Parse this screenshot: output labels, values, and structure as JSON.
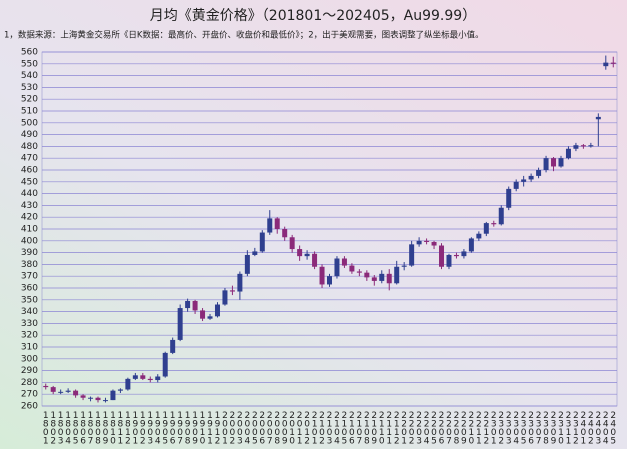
{
  "chart_data": {
    "type": "candlestick",
    "title": "月均《黄金价格》（201801～202405，Au99.99）",
    "subtitle": "1，数据来源：上海黄金交易所《日K数据：最高价、开盘价、收盘价和最低价》；2，出于美观需要，图表调整了纵坐标最小值。",
    "categories": [
      "1801",
      "1802",
      "1803",
      "1804",
      "1805",
      "1806",
      "1807",
      "1808",
      "1809",
      "1810",
      "1811",
      "1812",
      "1901",
      "1902",
      "1903",
      "1904",
      "1905",
      "1906",
      "1907",
      "1908",
      "1909",
      "1910",
      "1911",
      "1912",
      "2001",
      "2002",
      "2003",
      "2004",
      "2005",
      "2006",
      "2007",
      "2008",
      "2009",
      "2010",
      "2011",
      "2012",
      "2101",
      "2102",
      "2103",
      "2104",
      "2105",
      "2106",
      "2107",
      "2108",
      "2109",
      "2110",
      "2111",
      "2112",
      "2201",
      "2202",
      "2203",
      "2204",
      "2205",
      "2206",
      "2207",
      "2208",
      "2209",
      "2210",
      "2211",
      "2212",
      "2301",
      "2302",
      "2303",
      "2304",
      "2305",
      "2306",
      "2307",
      "2308",
      "2309",
      "2310",
      "2311",
      "2312",
      "2401",
      "2402",
      "2403",
      "2404",
      "2405"
    ],
    "open": [
      277,
      276,
      272,
      272,
      273,
      269,
      267,
      267,
      265,
      265,
      273,
      274,
      283,
      286,
      283,
      282,
      285,
      305,
      316,
      343,
      349,
      341,
      334,
      336,
      346,
      358,
      357,
      372,
      388,
      391,
      407,
      419,
      410,
      403,
      393,
      387,
      389,
      378,
      363,
      370,
      385,
      379,
      374,
      373,
      369,
      366,
      372,
      364,
      378,
      379,
      397,
      400,
      399,
      396,
      378,
      388,
      387,
      391,
      402,
      406,
      415,
      414,
      428,
      444,
      450,
      452,
      455,
      460,
      470,
      463,
      470,
      478,
      481,
      480,
      503,
      548,
      551
    ],
    "high": [
      279,
      277,
      274,
      275,
      274,
      270,
      268,
      268,
      267,
      274,
      275,
      284,
      288,
      288,
      285,
      287,
      306,
      318,
      346,
      351,
      350,
      343,
      338,
      348,
      360,
      362,
      374,
      392,
      394,
      409,
      426,
      420,
      412,
      405,
      396,
      392,
      391,
      380,
      372,
      387,
      387,
      381,
      376,
      375,
      371,
      375,
      376,
      383,
      382,
      400,
      403,
      402,
      400,
      398,
      389,
      390,
      393,
      403,
      408,
      416,
      417,
      430,
      446,
      452,
      455,
      457,
      462,
      472,
      471,
      472,
      480,
      483,
      482,
      483,
      508,
      557,
      556
    ],
    "low": [
      274,
      270,
      270,
      271,
      267,
      265,
      264,
      263,
      263,
      265,
      271,
      273,
      282,
      282,
      280,
      280,
      284,
      304,
      315,
      340,
      338,
      332,
      333,
      335,
      345,
      354,
      350,
      370,
      387,
      390,
      405,
      406,
      400,
      390,
      383,
      384,
      376,
      360,
      361,
      368,
      377,
      372,
      370,
      366,
      362,
      364,
      358,
      363,
      375,
      378,
      395,
      397,
      393,
      376,
      376,
      385,
      385,
      390,
      400,
      404,
      412,
      413,
      426,
      442,
      446,
      450,
      453,
      458,
      459,
      462,
      469,
      476,
      478,
      479,
      480,
      545,
      547
    ],
    "close": [
      276,
      272,
      272,
      273,
      269,
      267,
      267,
      265,
      265,
      273,
      274,
      283,
      286,
      283,
      282,
      285,
      305,
      316,
      343,
      349,
      341,
      334,
      336,
      346,
      358,
      357,
      372,
      388,
      391,
      407,
      419,
      410,
      403,
      393,
      387,
      389,
      378,
      363,
      370,
      385,
      379,
      374,
      373,
      369,
      366,
      372,
      364,
      378,
      379,
      397,
      400,
      399,
      396,
      378,
      388,
      387,
      391,
      402,
      406,
      415,
      414,
      428,
      444,
      450,
      452,
      455,
      460,
      470,
      463,
      470,
      478,
      481,
      480,
      481,
      505,
      551,
      550
    ],
    "up_color": "#2f3f8f",
    "down_color": "#8b2a7a",
    "ylim": [
      260,
      560
    ],
    "yticks": [
      260,
      270,
      280,
      290,
      300,
      310,
      320,
      330,
      340,
      350,
      360,
      370,
      380,
      390,
      400,
      410,
      420,
      430,
      440,
      450,
      460,
      470,
      480,
      490,
      500,
      510,
      520,
      530,
      540,
      550,
      560
    ],
    "grid": true
  }
}
